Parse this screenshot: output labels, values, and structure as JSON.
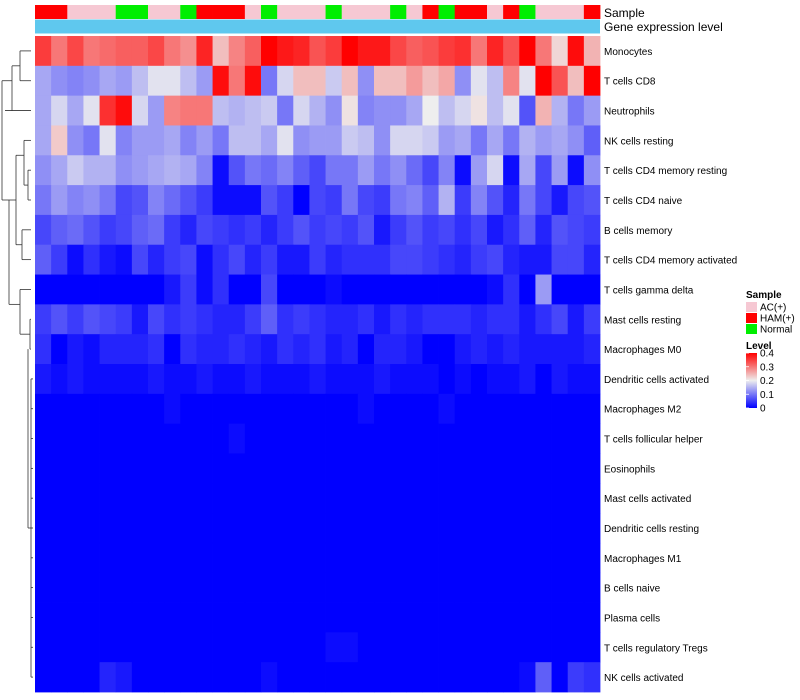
{
  "chart_data": {
    "type": "heatmap",
    "title": "",
    "annotation_labels": [
      "Sample",
      "Gene expression level"
    ],
    "row_labels": [
      "Monocytes",
      "T cells CD8",
      "Neutrophils",
      "NK cells resting",
      "T cells CD4 memory resting",
      "T cells CD4 naive",
      "B cells memory",
      "T cells CD4 memory activated",
      "T cells gamma delta",
      "Mast cells resting",
      "Macrophages M0",
      "Dendritic cells activated",
      "Macrophages M2",
      "T cells follicular helper",
      "Eosinophils",
      "Mast cells activated",
      "Dendritic cells resting",
      "Macrophages M1",
      "B cells naive",
      "Plasma cells",
      "T cells regulatory  Tregs",
      "NK cells activated"
    ],
    "sample_groups": [
      "HAM(+)",
      "HAM(+)",
      "AC(+)",
      "AC(+)",
      "AC(+)",
      "Normal",
      "Normal",
      "AC(+)",
      "AC(+)",
      "Normal",
      "HAM(+)",
      "HAM(+)",
      "HAM(+)",
      "AC(+)",
      "Normal",
      "AC(+)",
      "AC(+)",
      "AC(+)",
      "Normal",
      "AC(+)",
      "AC(+)",
      "AC(+)",
      "Normal",
      "AC(+)",
      "HAM(+)",
      "Normal",
      "HAM(+)",
      "HAM(+)",
      "AC(+)",
      "HAM(+)",
      "Normal",
      "AC(+)",
      "AC(+)",
      "AC(+)",
      "HAM(+)"
    ],
    "values": [
      [
        0.35,
        0.3,
        0.34,
        0.3,
        0.31,
        0.32,
        0.32,
        0.34,
        0.3,
        0.28,
        0.37,
        0.24,
        0.29,
        0.32,
        0.4,
        0.38,
        0.37,
        0.33,
        0.35,
        0.4,
        0.38,
        0.38,
        0.34,
        0.32,
        0.33,
        0.35,
        0.36,
        0.3,
        0.37,
        0.33,
        0.4,
        0.3,
        0.22,
        0.39,
        0.25
      ],
      [
        0.14,
        0.12,
        0.11,
        0.12,
        0.14,
        0.13,
        0.16,
        0.19,
        0.19,
        0.16,
        0.13,
        0.39,
        0.3,
        0.39,
        0.1,
        0.18,
        0.24,
        0.24,
        0.17,
        0.24,
        0.12,
        0.24,
        0.24,
        0.27,
        0.24,
        0.26,
        0.12,
        0.19,
        0.16,
        0.29,
        0.19,
        0.4,
        0.33,
        0.24,
        0.4
      ],
      [
        0.14,
        0.18,
        0.14,
        0.19,
        0.36,
        0.39,
        0.18,
        0.13,
        0.29,
        0.3,
        0.3,
        0.16,
        0.15,
        0.16,
        0.17,
        0.1,
        0.18,
        0.15,
        0.12,
        0.21,
        0.11,
        0.12,
        0.12,
        0.14,
        0.2,
        0.16,
        0.18,
        0.21,
        0.16,
        0.19,
        0.07,
        0.25,
        0.15,
        0.1,
        0.13
      ],
      [
        0.14,
        0.23,
        0.12,
        0.1,
        0.19,
        0.11,
        0.13,
        0.13,
        0.14,
        0.11,
        0.13,
        0.1,
        0.16,
        0.16,
        0.14,
        0.19,
        0.12,
        0.13,
        0.13,
        0.17,
        0.16,
        0.12,
        0.18,
        0.18,
        0.17,
        0.13,
        0.14,
        0.1,
        0.14,
        0.1,
        0.15,
        0.13,
        0.14,
        0.12,
        0.08
      ],
      [
        0.12,
        0.14,
        0.17,
        0.15,
        0.15,
        0.12,
        0.13,
        0.14,
        0.15,
        0.14,
        0.11,
        0.01,
        0.07,
        0.1,
        0.09,
        0.11,
        0.08,
        0.06,
        0.1,
        0.1,
        0.13,
        0.1,
        0.12,
        0.09,
        0.06,
        0.11,
        0.01,
        0.13,
        0.18,
        0.01,
        0.14,
        0.06,
        0.13,
        0.01,
        0.12
      ],
      [
        0.1,
        0.13,
        0.11,
        0.12,
        0.1,
        0.06,
        0.07,
        0.11,
        0.09,
        0.07,
        0.05,
        0.01,
        0.01,
        0.01,
        0.07,
        0.05,
        0.0,
        0.06,
        0.05,
        0.1,
        0.06,
        0.05,
        0.1,
        0.11,
        0.08,
        0.15,
        0.05,
        0.11,
        0.07,
        0.03,
        0.1,
        0.06,
        0.02,
        0.06,
        0.07
      ],
      [
        0.06,
        0.08,
        0.09,
        0.07,
        0.05,
        0.06,
        0.08,
        0.09,
        0.05,
        0.03,
        0.06,
        0.05,
        0.04,
        0.05,
        0.03,
        0.05,
        0.07,
        0.05,
        0.06,
        0.05,
        0.07,
        0.02,
        0.05,
        0.07,
        0.05,
        0.06,
        0.04,
        0.06,
        0.02,
        0.04,
        0.08,
        0.03,
        0.07,
        0.06,
        0.05
      ],
      [
        0.08,
        0.05,
        0.01,
        0.04,
        0.02,
        0.01,
        0.06,
        0.03,
        0.05,
        0.06,
        0.01,
        0.04,
        0.06,
        0.03,
        0.05,
        0.02,
        0.02,
        0.05,
        0.03,
        0.04,
        0.04,
        0.04,
        0.06,
        0.06,
        0.05,
        0.04,
        0.03,
        0.05,
        0.06,
        0.03,
        0.02,
        0.02,
        0.06,
        0.06,
        0.03
      ],
      [
        0.0,
        0.0,
        0.0,
        0.0,
        0.0,
        0.0,
        0.0,
        0.0,
        0.02,
        0.05,
        0.01,
        0.04,
        0.0,
        0.0,
        0.06,
        0.0,
        0.0,
        0.0,
        0.01,
        0.0,
        0.0,
        0.0,
        0.0,
        0.0,
        0.0,
        0.0,
        0.0,
        0.0,
        0.01,
        0.04,
        0.0,
        0.13,
        0.0,
        0.0,
        0.0
      ],
      [
        0.05,
        0.07,
        0.05,
        0.07,
        0.06,
        0.05,
        0.02,
        0.06,
        0.04,
        0.05,
        0.04,
        0.03,
        0.03,
        0.05,
        0.08,
        0.04,
        0.05,
        0.04,
        0.03,
        0.03,
        0.04,
        0.02,
        0.04,
        0.03,
        0.04,
        0.04,
        0.04,
        0.03,
        0.04,
        0.04,
        0.02,
        0.04,
        0.06,
        0.02,
        0.05
      ],
      [
        0.04,
        0.0,
        0.02,
        0.01,
        0.03,
        0.03,
        0.03,
        0.04,
        0.0,
        0.04,
        0.03,
        0.03,
        0.04,
        0.03,
        0.02,
        0.04,
        0.03,
        0.04,
        0.02,
        0.03,
        0.0,
        0.03,
        0.03,
        0.02,
        0.0,
        0.0,
        0.02,
        0.03,
        0.02,
        0.03,
        0.02,
        0.02,
        0.02,
        0.02,
        0.03
      ],
      [
        0.02,
        0.01,
        0.02,
        0.01,
        0.01,
        0.01,
        0.01,
        0.02,
        0.01,
        0.01,
        0.02,
        0.01,
        0.01,
        0.02,
        0.01,
        0.01,
        0.01,
        0.02,
        0.01,
        0.01,
        0.01,
        0.02,
        0.01,
        0.01,
        0.01,
        0.0,
        0.01,
        0.0,
        0.01,
        0.01,
        0.02,
        0.0,
        0.02,
        0.01,
        0.01
      ],
      [
        0.0,
        0.0,
        0.0,
        0.0,
        0.0,
        0.0,
        0.0,
        0.0,
        0.01,
        0.0,
        0.0,
        0.0,
        0.0,
        0.0,
        0.0,
        0.0,
        0.0,
        0.0,
        0.0,
        0.0,
        0.01,
        0.0,
        0.0,
        0.0,
        0.0,
        0.01,
        0.0,
        0.0,
        0.0,
        0.0,
        0.0,
        0.0,
        0.0,
        0.0,
        0.0
      ],
      [
        0.0,
        0.0,
        0.0,
        0.0,
        0.0,
        0.0,
        0.0,
        0.0,
        0.0,
        0.0,
        0.0,
        0.0,
        0.01,
        0.0,
        0.0,
        0.0,
        0.0,
        0.0,
        0.0,
        0.0,
        0.0,
        0.0,
        0.0,
        0.0,
        0.0,
        0.0,
        0.0,
        0.0,
        0.0,
        0.0,
        0.0,
        0.0,
        0.0,
        0.0,
        0.0
      ],
      [
        0.0,
        0.0,
        0.0,
        0.0,
        0.0,
        0.0,
        0.0,
        0.0,
        0.0,
        0.0,
        0.0,
        0.0,
        0.0,
        0.0,
        0.0,
        0.0,
        0.0,
        0.0,
        0.0,
        0.0,
        0.0,
        0.0,
        0.0,
        0.0,
        0.0,
        0.0,
        0.0,
        0.0,
        0.0,
        0.0,
        0.0,
        0.0,
        0.0,
        0.0,
        0.0
      ],
      [
        0.0,
        0.0,
        0.0,
        0.0,
        0.0,
        0.0,
        0.0,
        0.0,
        0.0,
        0.0,
        0.0,
        0.0,
        0.0,
        0.0,
        0.0,
        0.0,
        0.0,
        0.0,
        0.0,
        0.0,
        0.0,
        0.0,
        0.0,
        0.0,
        0.0,
        0.0,
        0.0,
        0.0,
        0.0,
        0.0,
        0.0,
        0.0,
        0.0,
        0.0,
        0.0
      ],
      [
        0.0,
        0.0,
        0.0,
        0.0,
        0.0,
        0.0,
        0.0,
        0.0,
        0.0,
        0.0,
        0.0,
        0.0,
        0.0,
        0.0,
        0.0,
        0.0,
        0.0,
        0.0,
        0.0,
        0.0,
        0.0,
        0.0,
        0.0,
        0.0,
        0.0,
        0.0,
        0.0,
        0.0,
        0.0,
        0.0,
        0.0,
        0.0,
        0.0,
        0.0,
        0.0
      ],
      [
        0.0,
        0.0,
        0.0,
        0.0,
        0.0,
        0.0,
        0.0,
        0.0,
        0.0,
        0.0,
        0.0,
        0.0,
        0.0,
        0.0,
        0.0,
        0.0,
        0.0,
        0.0,
        0.0,
        0.0,
        0.0,
        0.0,
        0.0,
        0.0,
        0.0,
        0.0,
        0.0,
        0.0,
        0.0,
        0.0,
        0.0,
        0.0,
        0.0,
        0.0,
        0.0
      ],
      [
        0.0,
        0.0,
        0.0,
        0.0,
        0.0,
        0.0,
        0.0,
        0.0,
        0.0,
        0.0,
        0.0,
        0.0,
        0.0,
        0.0,
        0.0,
        0.0,
        0.0,
        0.0,
        0.0,
        0.0,
        0.0,
        0.0,
        0.0,
        0.0,
        0.0,
        0.0,
        0.0,
        0.0,
        0.0,
        0.0,
        0.0,
        0.0,
        0.0,
        0.0,
        0.0
      ],
      [
        0.0,
        0.0,
        0.0,
        0.0,
        0.0,
        0.0,
        0.0,
        0.0,
        0.0,
        0.0,
        0.0,
        0.0,
        0.0,
        0.0,
        0.0,
        0.0,
        0.0,
        0.0,
        0.0,
        0.0,
        0.0,
        0.0,
        0.0,
        0.0,
        0.0,
        0.0,
        0.0,
        0.0,
        0.0,
        0.0,
        0.0,
        0.0,
        0.0,
        0.0,
        0.0
      ],
      [
        0.0,
        0.0,
        0.0,
        0.0,
        0.0,
        0.0,
        0.0,
        0.0,
        0.0,
        0.0,
        0.0,
        0.0,
        0.0,
        0.0,
        0.0,
        0.0,
        0.0,
        0.0,
        0.01,
        0.01,
        0.0,
        0.0,
        0.0,
        0.0,
        0.0,
        0.0,
        0.0,
        0.0,
        0.0,
        0.0,
        0.0,
        0.0,
        0.0,
        0.0,
        0.0
      ],
      [
        0.0,
        0.0,
        0.0,
        0.0,
        0.03,
        0.02,
        0.0,
        0.0,
        0.0,
        0.0,
        0.0,
        0.0,
        0.0,
        0.0,
        0.01,
        0.0,
        0.0,
        0.0,
        0.0,
        0.0,
        0.0,
        0.0,
        0.0,
        0.0,
        0.0,
        0.0,
        0.0,
        0.0,
        0.0,
        0.0,
        0.01,
        0.08,
        0.0,
        0.05,
        0.04
      ]
    ],
    "color_scale": {
      "min": 0,
      "mid": 0.2,
      "max": 0.4,
      "low_color": "#0000ff",
      "mid_color": "#eeeeee",
      "high_color": "#ff0000"
    },
    "legend": {
      "sample_title": "Sample",
      "groups": [
        {
          "label": "AC(+)",
          "color": "#f6c8d3"
        },
        {
          "label": "HAM(+)",
          "color": "#ff0000"
        },
        {
          "label": "Normal",
          "color": "#00ee00"
        }
      ],
      "level_title": "Level",
      "level_ticks": [
        "0.4",
        "0.3",
        "0.2",
        "0.1",
        "0"
      ],
      "position": "right"
    },
    "gene_expression_color": "#5fc8ee"
  }
}
